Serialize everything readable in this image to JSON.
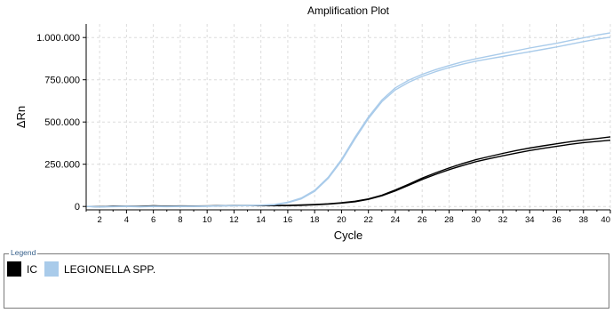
{
  "chart_data": {
    "type": "line",
    "title": "Amplification Plot",
    "xlabel": "Cycle",
    "ylabel": "ΔRn",
    "xlim": [
      1,
      40
    ],
    "ylim": [
      -20000,
      1080000
    ],
    "x_ticks": [
      2,
      4,
      6,
      8,
      10,
      12,
      14,
      16,
      18,
      20,
      22,
      24,
      26,
      28,
      30,
      32,
      34,
      36,
      38,
      40
    ],
    "y_ticks": [
      0,
      250000,
      500000,
      750000,
      1000000
    ],
    "y_tick_labels": [
      "0",
      "250.000",
      "500.000",
      "750.000",
      "1.000.000"
    ],
    "grid": true,
    "legend_position": "bottom",
    "x": [
      1,
      2,
      3,
      4,
      5,
      6,
      7,
      8,
      9,
      10,
      11,
      12,
      13,
      14,
      15,
      16,
      17,
      18,
      19,
      20,
      21,
      22,
      23,
      24,
      25,
      26,
      27,
      28,
      29,
      30,
      31,
      32,
      33,
      34,
      35,
      36,
      37,
      38,
      39,
      40
    ],
    "series": [
      {
        "name": "IC",
        "color": "#000000",
        "values": [
          0,
          -2000,
          1000,
          500,
          0,
          3000,
          1000,
          2000,
          1500,
          2000,
          4000,
          5000,
          5000,
          4500,
          5000,
          5500,
          7000,
          10000,
          14000,
          20000,
          28000,
          42000,
          63000,
          92000,
          125000,
          160000,
          190000,
          218000,
          242000,
          265000,
          283000,
          300000,
          316000,
          331000,
          344000,
          356000,
          368000,
          378000,
          385000,
          392000
        ]
      },
      {
        "name": "IC",
        "color": "#000000",
        "values": [
          0,
          -1000,
          2000,
          1000,
          1000,
          4000,
          2000,
          3000,
          2500,
          3000,
          5000,
          6000,
          6000,
          5500,
          6000,
          7000,
          9000,
          12000,
          16000,
          22000,
          31000,
          45000,
          67000,
          98000,
          132000,
          168000,
          199000,
          228000,
          254000,
          277000,
          296000,
          314000,
          331000,
          346000,
          359000,
          371000,
          383000,
          393000,
          402000,
          412000
        ]
      },
      {
        "name": "LEGIONELLA SPP.",
        "color": "#a9cbea",
        "values": [
          0,
          -3000,
          -1000,
          0,
          -2000,
          0,
          -1000,
          0,
          0,
          1000,
          3000,
          4000,
          5000,
          7000,
          10000,
          22000,
          45000,
          90000,
          165000,
          270000,
          400000,
          520000,
          620000,
          690000,
          735000,
          770000,
          798000,
          822000,
          842000,
          860000,
          874000,
          888000,
          902000,
          916000,
          930000,
          944000,
          960000,
          976000,
          990000,
          1002000
        ]
      },
      {
        "name": "LEGIONELLA SPP.",
        "color": "#a9cbea",
        "values": [
          0,
          -2000,
          0,
          1000,
          -1000,
          1000,
          0,
          1000,
          1000,
          2000,
          4000,
          5000,
          6000,
          8000,
          12000,
          25000,
          50000,
          96000,
          172000,
          278000,
          410000,
          530000,
          630000,
          702000,
          748000,
          782000,
          810000,
          834000,
          856000,
          874000,
          890000,
          906000,
          922000,
          938000,
          952000,
          966000,
          982000,
          998000,
          1014000,
          1028000
        ]
      }
    ]
  },
  "legend": {
    "caption": "Legend",
    "items": [
      {
        "label": "IC",
        "color": "#000000"
      },
      {
        "label": "LEGIONELLA SPP.",
        "color": "#a9cbea"
      }
    ]
  }
}
